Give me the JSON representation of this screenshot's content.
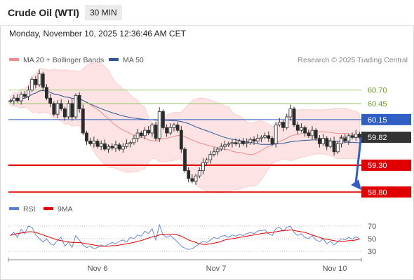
{
  "header": {
    "title": "Crude Oil (WTI)",
    "timeframe": "30 MIN"
  },
  "timestamp": "Monday, November 10, 2025 12:36:46 AM CET",
  "legend": [
    {
      "label": "MA 20 + Bollinger Bands",
      "color": "#f28c8c"
    },
    {
      "label": "MA 50",
      "color": "#2f5597"
    }
  ],
  "credit": "Research © 2025 Trading Central",
  "rsi_legend": [
    {
      "label": "RSI",
      "color": "#5b7fd6"
    },
    {
      "label": "9MA",
      "color": "#e00000"
    }
  ],
  "chart_data": [
    {
      "type": "candlestick",
      "x_labels": [
        "Nov 6",
        "Nov 7",
        "Nov 10"
      ],
      "levels": [
        {
          "label": "60.70",
          "value": 60.7,
          "style": "green-thin",
          "color": "#9ccc65"
        },
        {
          "label": "60.45",
          "value": 60.45,
          "style": "green-thin",
          "color": "#9ccc65"
        },
        {
          "label": "60.15",
          "value": 60.15,
          "style": "blue",
          "color": "#2f5fc4"
        },
        {
          "label": "59.82",
          "value": 59.82,
          "style": "current",
          "color": "#333333"
        },
        {
          "label": "59.30",
          "value": 59.3,
          "style": "red",
          "color": "#e00000"
        },
        {
          "label": "58.80",
          "value": 58.8,
          "style": "red",
          "color": "#e00000"
        }
      ],
      "forecast": {
        "from": 59.82,
        "to": 58.8,
        "color": "#2f5fc4"
      },
      "closes": [
        60.5,
        60.55,
        60.5,
        60.62,
        60.58,
        60.7,
        60.9,
        60.8,
        61.0,
        60.75,
        60.55,
        60.45,
        60.25,
        60.45,
        60.35,
        60.2,
        60.45,
        60.2,
        60.6,
        60.35,
        59.9,
        59.75,
        59.7,
        59.75,
        59.65,
        59.7,
        59.6,
        59.65,
        59.62,
        59.68,
        59.6,
        59.65,
        59.7,
        59.72,
        59.8,
        59.9,
        59.85,
        59.95,
        59.9,
        60.05,
        59.8,
        60.3,
        60.0,
        59.9,
        60.0,
        60.05,
        59.95,
        59.6,
        59.2,
        59.05,
        59.0,
        59.1,
        59.2,
        59.35,
        59.4,
        59.5,
        59.55,
        59.6,
        59.65,
        59.68,
        59.7,
        59.72,
        59.7,
        59.75,
        59.7,
        59.72,
        59.78,
        59.75,
        59.8,
        59.82,
        59.85,
        59.8,
        59.7,
        60.05,
        60.1,
        60.0,
        60.2,
        60.35,
        60.05,
        59.95,
        60.0,
        59.9,
        59.85,
        59.95,
        59.8,
        59.7,
        59.8,
        59.65,
        59.75,
        59.55,
        59.7,
        59.8,
        59.75,
        59.85,
        59.82,
        59.88,
        59.82
      ],
      "y_min": 58.7,
      "y_max": 61.1
    },
    {
      "type": "line",
      "name": "RSI",
      "y_ticks": [
        70,
        50,
        30
      ],
      "ylim": [
        20,
        80
      ],
      "rsi": [
        55,
        60,
        52,
        65,
        58,
        70,
        68,
        56,
        50,
        45,
        50,
        42,
        40,
        48,
        52,
        38,
        45,
        36,
        55,
        48,
        40,
        36,
        38,
        34,
        36,
        40,
        38,
        41,
        44,
        42,
        46,
        48,
        45,
        52,
        50,
        56,
        54,
        62,
        58,
        66,
        48,
        72,
        56,
        52,
        55,
        50,
        45,
        38,
        35,
        33,
        34,
        38,
        42,
        46,
        44,
        48,
        52,
        50,
        54,
        55,
        52,
        56,
        54,
        57,
        55,
        58,
        60,
        58,
        62,
        63,
        64,
        58,
        55,
        66,
        68,
        62,
        68,
        70,
        60,
        55,
        58,
        52,
        50,
        55,
        48,
        45,
        50,
        42,
        46,
        40,
        45,
        50,
        48,
        52,
        49,
        53,
        50
      ],
      "ma9": [
        55,
        57,
        58,
        59,
        60,
        61,
        61,
        60,
        58,
        56,
        54,
        52,
        50,
        48,
        47,
        46,
        45,
        44,
        44,
        44,
        43,
        42,
        41,
        40,
        39,
        38,
        38,
        38,
        39,
        39,
        40,
        41,
        42,
        43,
        44,
        46,
        47,
        49,
        51,
        53,
        54,
        56,
        57,
        57,
        57,
        57,
        56,
        54,
        51,
        48,
        46,
        44,
        42,
        41,
        41,
        42,
        43,
        44,
        46,
        48,
        49,
        50,
        51,
        52,
        53,
        54,
        55,
        56,
        57,
        58,
        59,
        59,
        60,
        61,
        62,
        63,
        63,
        64,
        63,
        62,
        61,
        60,
        58,
        56,
        54,
        52,
        50,
        49,
        48,
        47,
        46,
        46,
        46,
        47,
        47,
        48,
        49
      ]
    }
  ]
}
